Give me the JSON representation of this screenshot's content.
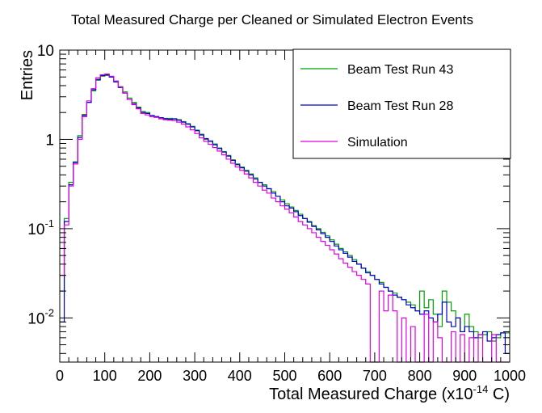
{
  "chart_data": {
    "type": "line",
    "subtype": "step-histogram",
    "title": "Total Measured Charge per Cleaned or Simulated Electron Events",
    "xlabel_main": "Total  Measured Charge (x10",
    "xlabel_exp": "-14",
    "xlabel_tail": " C)",
    "ylabel": "Entries",
    "xlim": [
      0,
      1000
    ],
    "ylim": [
      0.0032,
      10
    ],
    "yscale": "log",
    "bin_width": 10,
    "x_ticks": [
      "0",
      "100",
      "200",
      "300",
      "400",
      "500",
      "600",
      "700",
      "800",
      "900",
      "1000"
    ],
    "y_ticks": [
      {
        "value": 10,
        "base": "10",
        "exp": ""
      },
      {
        "value": 1,
        "base": "1",
        "exp": ""
      },
      {
        "value": 0.1,
        "base": "10",
        "exp": "-1"
      },
      {
        "value": 0.01,
        "base": "10",
        "exp": "-2"
      }
    ],
    "legend": {
      "position": "top-right"
    },
    "series": [
      {
        "name": "Beam Test Run 43",
        "color": "#00a000",
        "values": [
          0.02,
          0.13,
          0.33,
          0.56,
          1.1,
          1.9,
          2.6,
          3.5,
          4.6,
          5.1,
          5.2,
          5.0,
          4.5,
          3.9,
          3.4,
          2.9,
          2.6,
          2.3,
          2.05,
          2.0,
          1.85,
          1.78,
          1.75,
          1.72,
          1.72,
          1.68,
          1.66,
          1.58,
          1.5,
          1.4,
          1.27,
          1.14,
          1.0,
          0.96,
          0.89,
          0.8,
          0.73,
          0.66,
          0.59,
          0.53,
          0.49,
          0.45,
          0.41,
          0.37,
          0.33,
          0.31,
          0.28,
          0.26,
          0.23,
          0.21,
          0.19,
          0.175,
          0.16,
          0.145,
          0.13,
          0.12,
          0.108,
          0.1,
          0.091,
          0.083,
          0.075,
          0.067,
          0.06,
          0.055,
          0.05,
          0.045,
          0.04,
          0.036,
          0.033,
          0.03,
          0.027,
          0.025,
          0.022,
          0.02,
          0.019,
          0.017,
          0.016,
          0.015,
          0.014,
          0.012,
          0.02,
          0.013,
          0.016,
          0.011,
          0.008,
          0.02,
          0.015,
          0.012,
          0.01,
          0.007,
          0.011,
          0.008,
          0.007,
          0.006,
          0.0065,
          0.007,
          0.0055,
          0.006,
          0.0068,
          0.0068
        ]
      },
      {
        "name": "Beam Test Run 28",
        "color": "#0000d0",
        "values": [
          0.009,
          0.12,
          0.31,
          0.55,
          1.05,
          1.85,
          2.6,
          3.6,
          4.7,
          5.2,
          5.3,
          5.0,
          4.4,
          3.8,
          3.3,
          2.8,
          2.5,
          2.25,
          2.0,
          1.95,
          1.85,
          1.8,
          1.75,
          1.7,
          1.68,
          1.7,
          1.64,
          1.56,
          1.48,
          1.38,
          1.25,
          1.12,
          1.02,
          0.95,
          0.87,
          0.79,
          0.72,
          0.65,
          0.58,
          0.52,
          0.48,
          0.44,
          0.4,
          0.36,
          0.33,
          0.3,
          0.28,
          0.25,
          0.23,
          0.2,
          0.18,
          0.17,
          0.155,
          0.14,
          0.13,
          0.118,
          0.106,
          0.097,
          0.088,
          0.08,
          0.072,
          0.064,
          0.058,
          0.053,
          0.048,
          0.043,
          0.04,
          0.036,
          0.032,
          0.03,
          0.027,
          0.024,
          0.022,
          0.02,
          0.018,
          0.017,
          0.016,
          0.014,
          0.013,
          0.012,
          0.011,
          0.012,
          0.01,
          0.009,
          0.011,
          0.015,
          0.009,
          0.008,
          0.01,
          0.007,
          0.008,
          0.007,
          0.006,
          0.0065,
          0.007,
          0.0055,
          0.006,
          0.0065,
          0.0068,
          0.004
        ]
      },
      {
        "name": "Simulation",
        "color": "#e000e0",
        "values": [
          0.03,
          0.11,
          0.3,
          0.53,
          1.0,
          1.8,
          2.7,
          3.7,
          4.9,
          5.3,
          5.4,
          5.1,
          4.5,
          3.85,
          3.3,
          2.8,
          2.45,
          2.2,
          1.95,
          1.88,
          1.8,
          1.76,
          1.7,
          1.66,
          1.64,
          1.62,
          1.56,
          1.48,
          1.38,
          1.28,
          1.16,
          1.04,
          0.95,
          0.88,
          0.81,
          0.74,
          0.67,
          0.6,
          0.54,
          0.49,
          0.45,
          0.41,
          0.37,
          0.33,
          0.3,
          0.27,
          0.25,
          0.22,
          0.2,
          0.18,
          0.165,
          0.15,
          0.135,
          0.12,
          0.11,
          0.1,
          0.09,
          0.08,
          0.072,
          0.065,
          0.058,
          0.052,
          0.046,
          0.041,
          0.037,
          0.033,
          0.03,
          0.027,
          0.024,
          0.0032,
          0.0032,
          0.02,
          0.012,
          0.018,
          0.012,
          0.0032,
          0.01,
          0.0032,
          0.008,
          0.0032,
          0.0032,
          0.011,
          0.0032,
          0.009,
          0.006,
          0.0032,
          0.0032,
          0.007,
          0.0032,
          0.0065,
          0.0032,
          0.006,
          0.0032,
          0.0065,
          0.0032,
          0.0032,
          0.0065,
          0.0032,
          0.0032,
          0.0032
        ]
      }
    ]
  }
}
